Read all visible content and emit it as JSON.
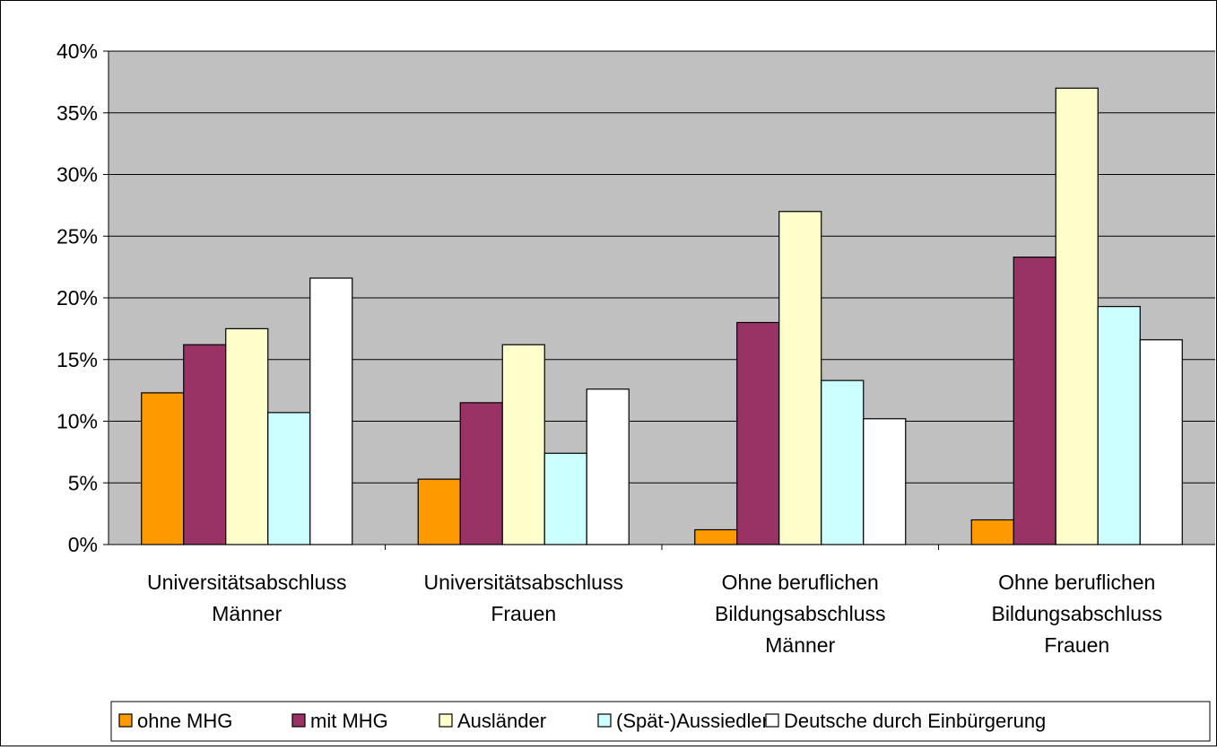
{
  "chart_data": {
    "type": "bar",
    "categories": [
      [
        "Universitätsabschluss",
        "Männer"
      ],
      [
        "Universitätsabschluss",
        "Frauen"
      ],
      [
        "Ohne beruflichen",
        "Bildungsabschluss",
        "Männer"
      ],
      [
        "Ohne beruflichen",
        "Bildungsabschluss",
        "Frauen"
      ]
    ],
    "series": [
      {
        "name": "ohne MHG",
        "color": "#FF9900",
        "values": [
          12.3,
          5.3,
          1.2,
          2.0
        ]
      },
      {
        "name": "mit MHG",
        "color": "#993366",
        "values": [
          16.2,
          11.5,
          18.0,
          23.3
        ]
      },
      {
        "name": "Ausländer",
        "color": "#FFFFCC",
        "values": [
          17.5,
          16.2,
          27.0,
          37.0
        ]
      },
      {
        "name": "(Spät-)Aussiedler",
        "color": "#CCFFFF",
        "values": [
          10.7,
          7.4,
          13.3,
          19.3
        ]
      },
      {
        "name": "Deutsche durch Einbürgerung",
        "color": "#FFFFFF",
        "values": [
          21.6,
          12.6,
          10.2,
          16.6
        ]
      }
    ],
    "ylim": [
      0,
      40
    ],
    "yticks": [
      "0%",
      "5%",
      "10%",
      "15%",
      "20%",
      "25%",
      "30%",
      "35%",
      "40%"
    ],
    "title": "",
    "xlabel": "",
    "ylabel": "",
    "grid": true,
    "legend": "bottom",
    "plot_background": "#C0C0C0"
  }
}
